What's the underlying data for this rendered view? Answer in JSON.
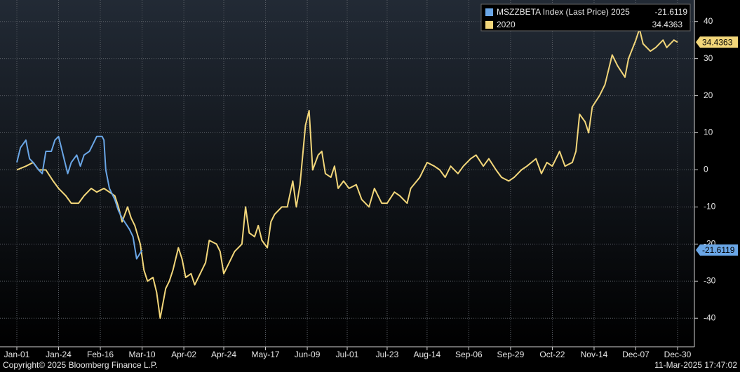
{
  "chart_data": {
    "type": "line",
    "series": [
      {
        "name": "MSZZBETA Index (Last Price) 2025",
        "color": "#6aa6e6",
        "x": [
          "Jan-01",
          "Jan-03",
          "Jan-06",
          "Jan-08",
          "Jan-10",
          "Jan-13",
          "Jan-15",
          "Jan-17",
          "Jan-20",
          "Jan-22",
          "Jan-24",
          "Jan-27",
          "Jan-29",
          "Jan-31",
          "Feb-03",
          "Feb-05",
          "Feb-07",
          "Feb-10",
          "Feb-12",
          "Feb-14",
          "Feb-17",
          "Feb-18",
          "Feb-19",
          "Feb-21",
          "Feb-24",
          "Feb-26",
          "Feb-28",
          "Mar-03",
          "Mar-05",
          "Mar-07",
          "Mar-10"
        ],
        "values": [
          2,
          6,
          8,
          3,
          2,
          0,
          -1,
          5,
          5,
          8,
          9,
          3,
          -1,
          2,
          4,
          1,
          4,
          5,
          7,
          9,
          9,
          8,
          0,
          -5,
          -8,
          -11,
          -13,
          -16,
          -18,
          -24,
          -21.6119
        ]
      },
      {
        "name": "2020",
        "color": "#f2d67a",
        "x": [
          "Jan-01",
          "Jan-06",
          "Jan-10",
          "Jan-13",
          "Jan-17",
          "Jan-21",
          "Jan-24",
          "Jan-28",
          "Jan-31",
          "Feb-04",
          "Feb-07",
          "Feb-11",
          "Feb-14",
          "Feb-18",
          "Feb-21",
          "Feb-24",
          "Feb-26",
          "Feb-28",
          "Mar-02",
          "Mar-04",
          "Mar-06",
          "Mar-09",
          "Mar-11",
          "Mar-13",
          "Mar-16",
          "Mar-18",
          "Mar-20",
          "Mar-23",
          "Mar-25",
          "Mar-27",
          "Mar-30",
          "Apr-01",
          "Apr-03",
          "Apr-06",
          "Apr-08",
          "Apr-10",
          "Apr-14",
          "Apr-16",
          "Apr-20",
          "Apr-22",
          "Apr-24",
          "Apr-27",
          "Apr-30",
          "May-04",
          "May-06",
          "May-08",
          "May-11",
          "May-13",
          "May-15",
          "May-18",
          "May-20",
          "May-22",
          "May-26",
          "May-29",
          "Jun-01",
          "Jun-03",
          "Jun-05",
          "Jun-08",
          "Jun-10",
          "Jun-12",
          "Jun-15",
          "Jun-17",
          "Jun-19",
          "Jun-22",
          "Jun-24",
          "Jun-26",
          "Jun-29",
          "Jul-02",
          "Jul-06",
          "Jul-09",
          "Jul-13",
          "Jul-16",
          "Jul-20",
          "Jul-23",
          "Jul-27",
          "Jul-30",
          "Aug-03",
          "Aug-05",
          "Aug-10",
          "Aug-14",
          "Aug-18",
          "Aug-21",
          "Aug-24",
          "Aug-27",
          "Aug-31",
          "Sep-03",
          "Sep-07",
          "Sep-10",
          "Sep-14",
          "Sep-17",
          "Sep-21",
          "Sep-24",
          "Sep-28",
          "Oct-01",
          "Oct-05",
          "Oct-08",
          "Oct-13",
          "Oct-16",
          "Oct-19",
          "Oct-22",
          "Oct-26",
          "Oct-29",
          "Nov-02",
          "Nov-04",
          "Nov-06",
          "Nov-09",
          "Nov-11",
          "Nov-13",
          "Nov-17",
          "Nov-20",
          "Nov-24",
          "Nov-27",
          "Dec-01",
          "Dec-03",
          "Dec-07",
          "Dec-09",
          "Dec-11",
          "Dec-15",
          "Dec-18",
          "Dec-22",
          "Dec-24",
          "Dec-28",
          "Dec-30"
        ],
        "values": [
          0,
          1,
          2,
          0,
          0,
          -3,
          -5,
          -7,
          -9,
          -9,
          -7,
          -5,
          -6,
          -5,
          -6,
          -7,
          -10,
          -14,
          -10,
          -13,
          -15,
          -20,
          -27,
          -30,
          -29,
          -33,
          -40,
          -32,
          -30,
          -27,
          -21,
          -24,
          -29,
          -28,
          -31,
          -29,
          -25,
          -19,
          -20,
          -22,
          -28,
          -25,
          -22,
          -20,
          -10,
          -17,
          -18,
          -15,
          -19,
          -21,
          -14,
          -12,
          -10,
          -10,
          -3,
          -10,
          -4,
          12,
          16,
          0,
          4,
          5,
          -1,
          -2,
          1,
          -5,
          -3,
          -5,
          -4,
          -8,
          -10,
          -5,
          -9,
          -9,
          -6,
          -7,
          -9,
          -5,
          -2,
          2,
          1,
          0,
          -2,
          1,
          -1,
          1,
          3,
          4,
          1,
          3,
          0,
          -2,
          -3,
          -2,
          0,
          1,
          3,
          -1,
          2,
          1,
          5,
          1,
          2,
          5,
          15,
          13,
          10,
          17,
          20,
          23,
          31,
          28,
          25,
          30,
          35,
          38,
          34,
          32,
          33,
          35,
          33,
          35,
          34.4363
        ]
      }
    ],
    "xlim": [
      "Jan-01",
      "Dec-30"
    ],
    "xticks": [
      "Jan-01",
      "Jan-24",
      "Feb-16",
      "Mar-10",
      "Apr-02",
      "Apr-24",
      "May-17",
      "Jun-09",
      "Jul-01",
      "Jul-23",
      "Aug-14",
      "Sep-06",
      "Sep-29",
      "Oct-22",
      "Nov-14",
      "Dec-07",
      "Dec-30"
    ],
    "ylim": [
      -47.7,
      45.8
    ],
    "yticks": [
      -40,
      -30,
      -20,
      -10,
      0,
      10,
      20,
      30,
      40
    ],
    "grid": true,
    "legend": "top-right",
    "copyright": "Copyright© 2025 Bloomberg Finance L.P.",
    "timestamp": "11-Mar-2025 17:47:02"
  }
}
